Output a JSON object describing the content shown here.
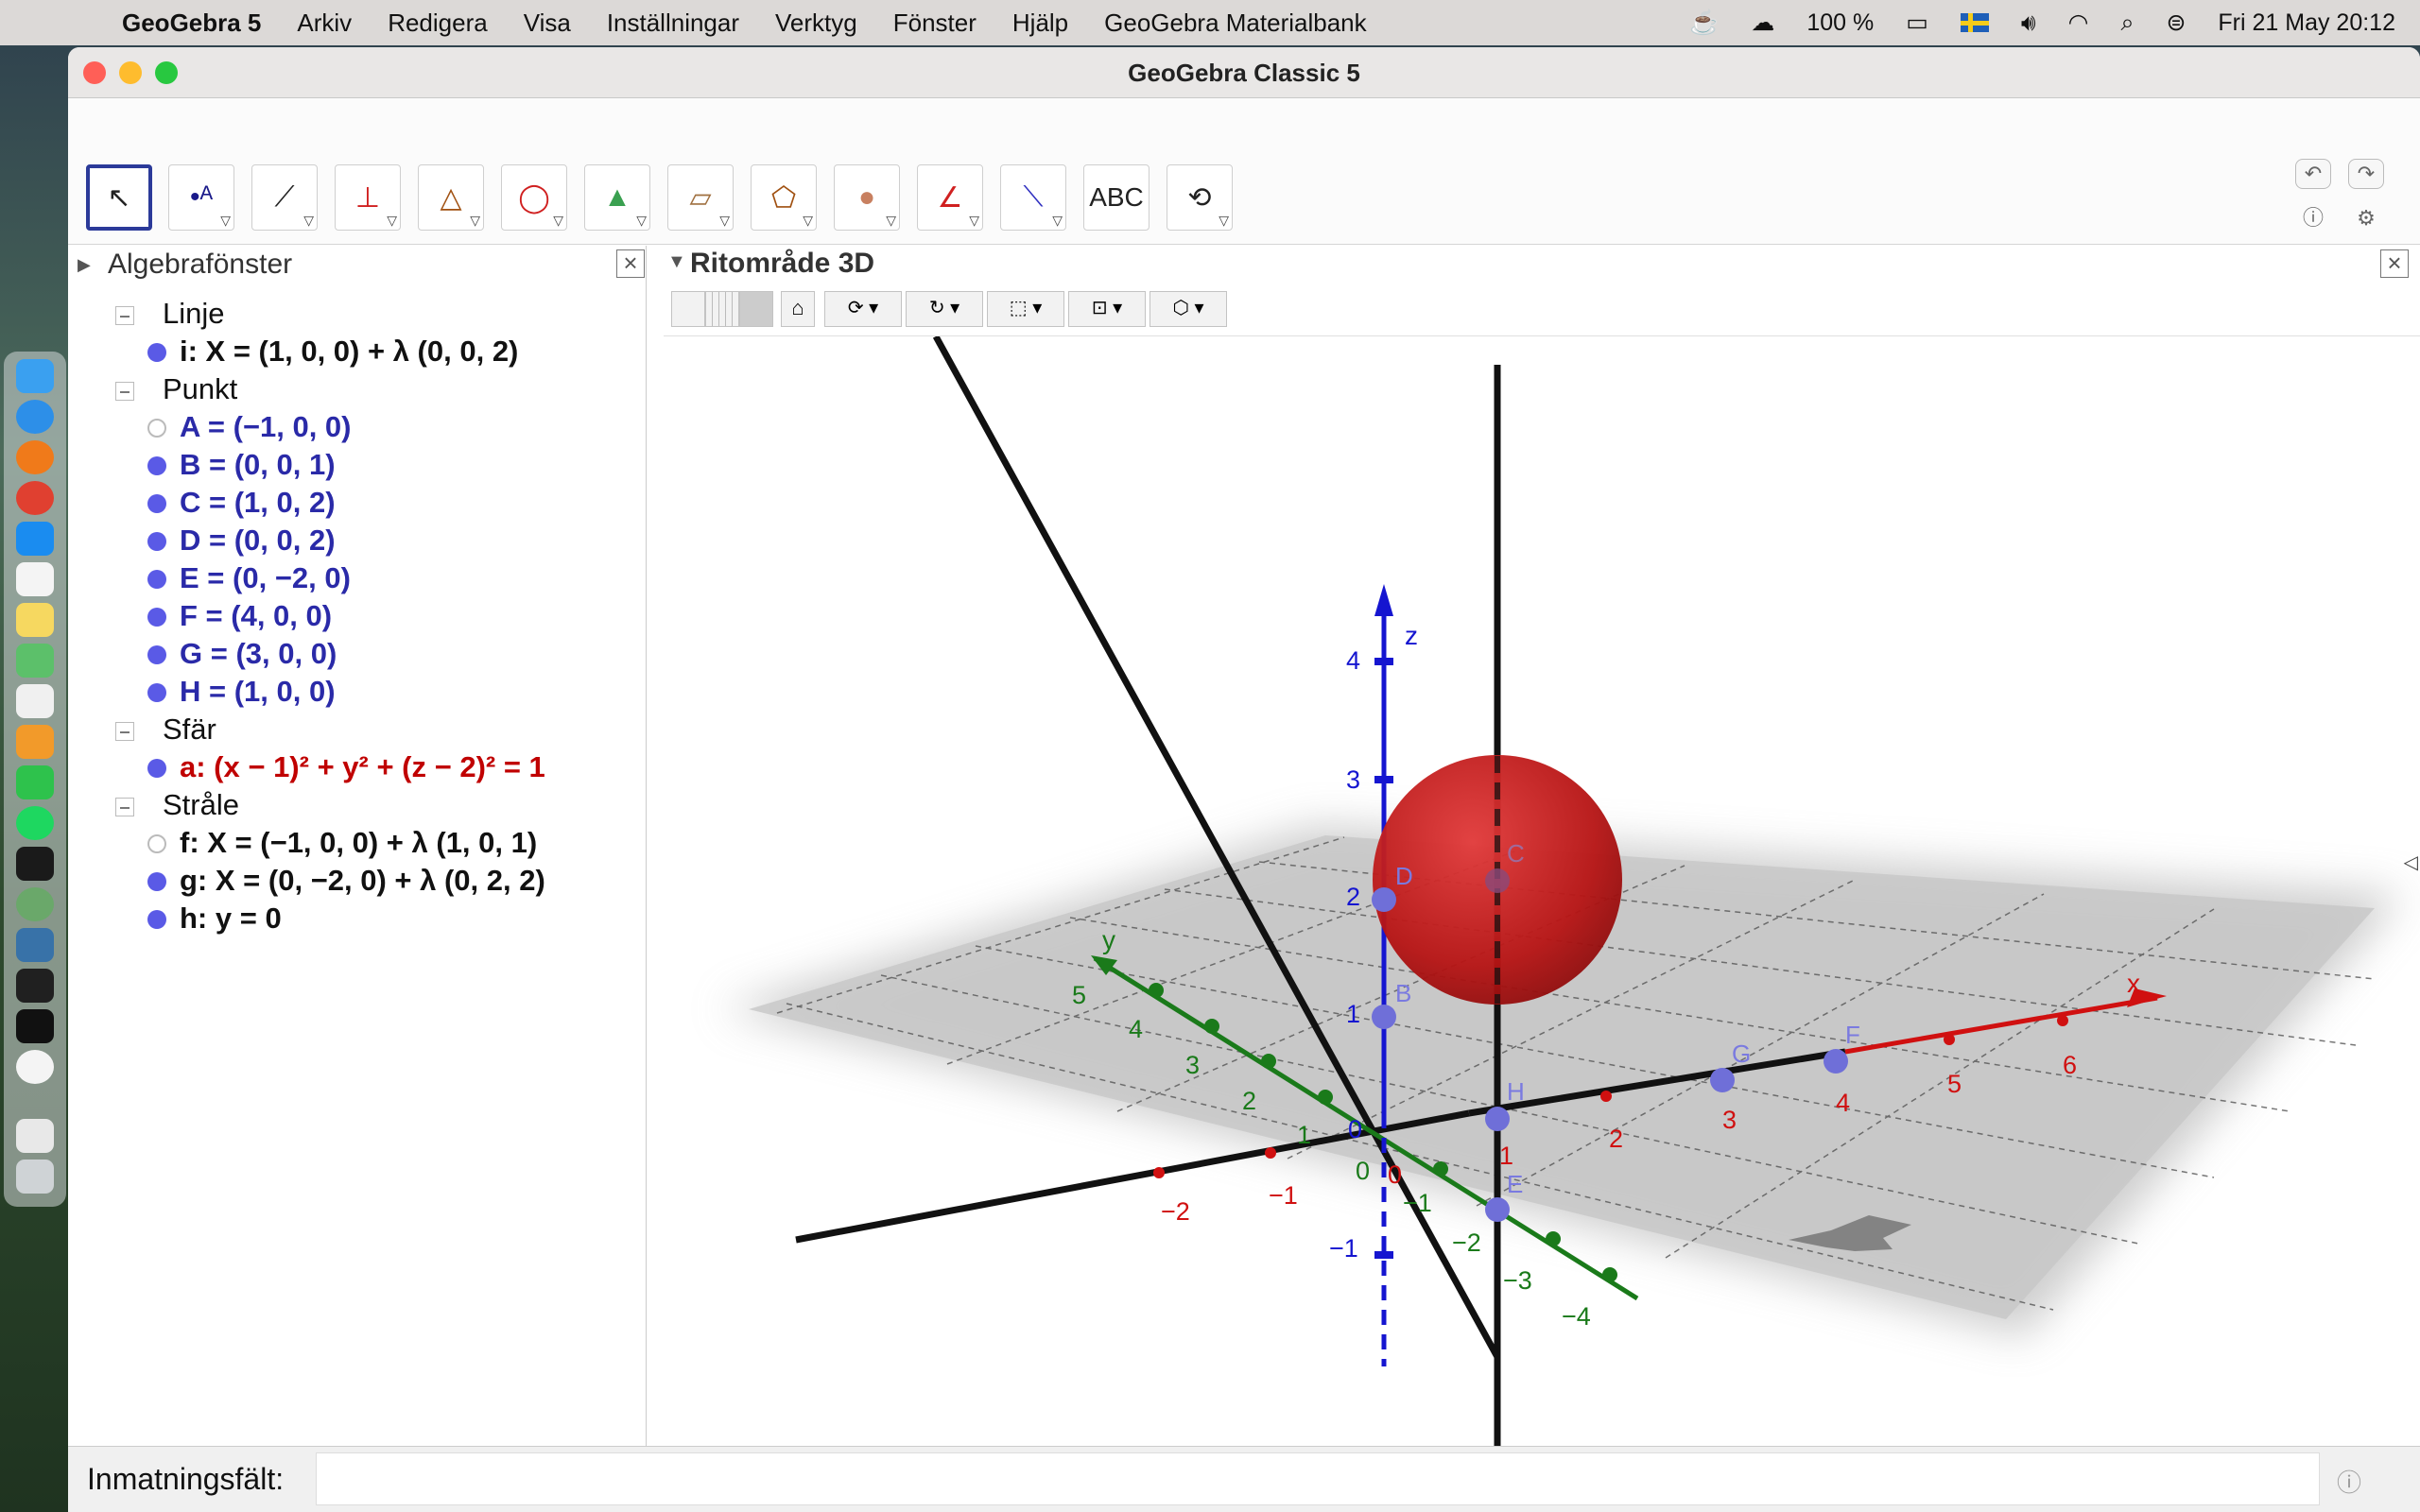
{
  "menubar": {
    "app_name": "GeoGebra 5",
    "items": [
      "Arkiv",
      "Redigera",
      "Visa",
      "Inställningar",
      "Verktyg",
      "Fönster",
      "Hjälp",
      "GeoGebra Materialbank"
    ],
    "battery": "100 %",
    "clock": "Fri 21 May  20:12",
    "icons": [
      "apple-icon",
      "coffee-icon",
      "cloud-upload-icon",
      "battery-icon",
      "swedish-flag-icon",
      "volume-icon",
      "wifi-icon",
      "spotlight-icon",
      "control-center-icon"
    ]
  },
  "window": {
    "title": "GeoGebra Classic 5"
  },
  "toolbar": {
    "tools": [
      {
        "name": "move-tool",
        "glyph": "↖"
      },
      {
        "name": "point-tool",
        "glyph": "•ᴬ"
      },
      {
        "name": "line-tool",
        "glyph": "⟋"
      },
      {
        "name": "perpendicular-tool",
        "glyph": "⊥"
      },
      {
        "name": "polygon-tool",
        "glyph": "△"
      },
      {
        "name": "circle-axis-tool",
        "glyph": "◯"
      },
      {
        "name": "pyramid-tool",
        "glyph": "▲"
      },
      {
        "name": "plane-tool",
        "glyph": "▱"
      },
      {
        "name": "prism-tool",
        "glyph": "⬠"
      },
      {
        "name": "sphere-tool",
        "glyph": "●"
      },
      {
        "name": "angle-tool",
        "glyph": "∠"
      },
      {
        "name": "reflect-tool",
        "glyph": "⟍"
      },
      {
        "name": "text-tool",
        "glyph": "ABC"
      },
      {
        "name": "rotate-view-tool",
        "glyph": "⟲"
      }
    ]
  },
  "algebra": {
    "title": "Algebrafönster",
    "groups": [
      {
        "label": "Linje",
        "items": [
          {
            "text": "i: X = (1, 0, 0) + λ (0, 0, 2)",
            "color": "#111111",
            "visible": true
          }
        ]
      },
      {
        "label": "Punkt",
        "items": [
          {
            "text": "A = (−1, 0, 0)",
            "color": "#2a2aa8",
            "visible": false
          },
          {
            "text": "B = (0, 0, 1)",
            "color": "#2a2aa8",
            "visible": true
          },
          {
            "text": "C = (1, 0, 2)",
            "color": "#2a2aa8",
            "visible": true
          },
          {
            "text": "D = (0, 0, 2)",
            "color": "#2a2aa8",
            "visible": true
          },
          {
            "text": "E = (0, −2, 0)",
            "color": "#2a2aa8",
            "visible": true
          },
          {
            "text": "F = (4, 0, 0)",
            "color": "#2a2aa8",
            "visible": true
          },
          {
            "text": "G = (3, 0, 0)",
            "color": "#2a2aa8",
            "visible": true
          },
          {
            "text": "H = (1, 0, 0)",
            "color": "#2a2aa8",
            "visible": true
          }
        ]
      },
      {
        "label": "Sfär",
        "items": [
          {
            "text": "a: (x − 1)² + y² + (z − 2)² = 1",
            "color": "#c00000",
            "visible": true
          }
        ]
      },
      {
        "label": "Stråle",
        "items": [
          {
            "text": "f: X = (−1, 0, 0) + λ (1, 0, 1)",
            "color": "#111111",
            "visible": false
          },
          {
            "text": "g: X = (0, −2, 0) + λ (0, 2, 2)",
            "color": "#111111",
            "visible": true
          },
          {
            "text": "h: y = 0",
            "color": "#111111",
            "visible": true
          }
        ]
      }
    ]
  },
  "graphics": {
    "title": "Ritområde 3D",
    "axes": {
      "x": {
        "label": "x",
        "ticks": [
          "−2",
          "−1",
          "0",
          "1",
          "2",
          "3",
          "4",
          "5",
          "6"
        ],
        "color": "#d01010"
      },
      "y": {
        "label": "y",
        "ticks": [
          "5",
          "4",
          "3",
          "2",
          "1",
          "0",
          "−1",
          "−2",
          "−3",
          "−4"
        ],
        "color": "#1a7a1a"
      },
      "z": {
        "label": "z",
        "ticks": [
          "4",
          "3",
          "2",
          "1",
          "0",
          "−1"
        ],
        "color": "#1515d0"
      }
    },
    "points": [
      "B",
      "C",
      "D",
      "E",
      "F",
      "G",
      "H"
    ]
  },
  "input": {
    "label": "Inmatningsfält:",
    "value": ""
  }
}
